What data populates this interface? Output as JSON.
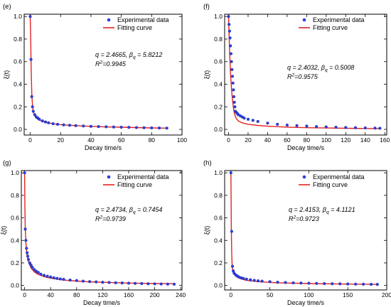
{
  "chart_data": [
    {
      "panel": "(e)",
      "type": "scatter",
      "xlabel": "Decay time/s",
      "ylabel": "ξ(t)",
      "xlim": [
        -4,
        100
      ],
      "ylim": [
        -0.05,
        1.02
      ],
      "xticks": [
        0,
        20,
        40,
        60,
        80,
        100
      ],
      "yticks": [
        0.0,
        0.2,
        0.4,
        0.6,
        0.8,
        1.0
      ],
      "legend": {
        "position": "top-right",
        "entries": [
          "Experimental data",
          "Fitting curve"
        ]
      },
      "annotation": {
        "q": "q = 2.4665, ",
        "beta": "β",
        "beta_sub": "q",
        "beta_val": " = 5.8212",
        "r2_prefix": "R",
        "r2_sup": "2",
        "r2_val": "=0.9945"
      },
      "series": [
        {
          "name": "Experimental data",
          "kind": "points",
          "x": [
            0,
            0.5,
            1,
            1.5,
            2,
            3,
            4,
            5,
            6,
            8,
            10,
            12,
            15,
            18,
            22,
            26,
            30,
            35,
            40,
            45,
            50,
            55,
            60,
            65,
            70,
            75,
            80,
            85,
            90
          ],
          "y": [
            1.0,
            0.62,
            0.29,
            0.2,
            0.16,
            0.13,
            0.11,
            0.1,
            0.09,
            0.075,
            0.066,
            0.058,
            0.05,
            0.045,
            0.04,
            0.036,
            0.033,
            0.03,
            0.027,
            0.025,
            0.023,
            0.021,
            0.019,
            0.018,
            0.016,
            0.015,
            0.013,
            0.012,
            0.011
          ]
        },
        {
          "name": "Fitting curve",
          "kind": "curve",
          "x": [
            0,
            0.3,
            0.6,
            1,
            1.5,
            2,
            3,
            4,
            6,
            8,
            10,
            15,
            20,
            30,
            40,
            50,
            60,
            70,
            80,
            90
          ],
          "y": [
            1.0,
            0.8,
            0.55,
            0.32,
            0.21,
            0.16,
            0.12,
            0.1,
            0.085,
            0.072,
            0.063,
            0.05,
            0.042,
            0.033,
            0.027,
            0.022,
            0.019,
            0.016,
            0.013,
            0.011
          ]
        }
      ]
    },
    {
      "panel": "(f)",
      "type": "scatter",
      "xlabel": "Decay time/s",
      "ylabel": "ξ(t)",
      "xlim": [
        -4,
        162
      ],
      "ylim": [
        -0.05,
        1.02
      ],
      "xticks": [
        0,
        20,
        40,
        60,
        80,
        100,
        120,
        140,
        160
      ],
      "yticks": [
        0.0,
        0.2,
        0.4,
        0.6,
        0.8,
        1.0
      ],
      "legend": {
        "position": "top-right",
        "entries": [
          "Experimental data",
          "Fitting curve"
        ]
      },
      "annotation": {
        "q": "q = 2.4032, ",
        "beta": "β",
        "beta_sub": "q",
        "beta_val": " = 0.5008",
        "r2_prefix": "R",
        "r2_sup": "2",
        "r2_val": "=0.9575"
      },
      "series": [
        {
          "name": "Experimental data",
          "kind": "points",
          "x": [
            0,
            0.5,
            1,
            1.5,
            2,
            2.5,
            3,
            3.5,
            4,
            4.5,
            5,
            5.5,
            6,
            6.5,
            7,
            8,
            9,
            10,
            12,
            14,
            16,
            20,
            25,
            30,
            40,
            50,
            60,
            70,
            80,
            90,
            100,
            110,
            120,
            130,
            140,
            150,
            155
          ],
          "y": [
            1.0,
            0.93,
            0.87,
            0.81,
            0.74,
            0.67,
            0.6,
            0.53,
            0.47,
            0.41,
            0.35,
            0.29,
            0.24,
            0.2,
            0.16,
            0.15,
            0.14,
            0.13,
            0.12,
            0.11,
            0.1,
            0.09,
            0.08,
            0.07,
            0.055,
            0.045,
            0.038,
            0.033,
            0.029,
            0.025,
            0.022,
            0.019,
            0.017,
            0.015,
            0.013,
            0.011,
            0.01
          ]
        },
        {
          "name": "Fitting curve",
          "kind": "curve",
          "x": [
            0,
            0.5,
            1,
            2,
            3,
            4,
            5,
            6,
            8,
            10,
            12,
            15,
            20,
            30,
            40,
            60,
            80,
            100,
            120,
            140,
            155
          ],
          "y": [
            1.0,
            0.85,
            0.7,
            0.5,
            0.36,
            0.26,
            0.19,
            0.14,
            0.095,
            0.075,
            0.065,
            0.055,
            0.045,
            0.035,
            0.028,
            0.02,
            0.015,
            0.012,
            0.01,
            0.008,
            0.007
          ]
        }
      ]
    },
    {
      "panel": "(g)",
      "type": "scatter",
      "xlabel": "Decay time/s",
      "ylabel": "ξ(t)",
      "xlim": [
        -5,
        242
      ],
      "ylim": [
        -0.04,
        1.02
      ],
      "xticks": [
        0,
        40,
        80,
        120,
        160,
        200,
        240
      ],
      "yticks": [
        0.0,
        0.2,
        0.4,
        0.6,
        0.8,
        1.0
      ],
      "legend": {
        "position": "top-right",
        "entries": [
          "Experimental data",
          "Fitting curve"
        ]
      },
      "annotation": {
        "q": "q = 2.4734, ",
        "beta": "β",
        "beta_sub": "q",
        "beta_val": " = 0.7454",
        "r2_prefix": "R",
        "r2_sup": "2",
        "r2_val": "=0.9739"
      },
      "series": [
        {
          "name": "Experimental data",
          "kind": "points",
          "x": [
            0,
            1,
            2,
            3,
            4,
            5,
            6,
            8,
            10,
            12,
            15,
            18,
            21,
            25,
            30,
            35,
            40,
            45,
            50,
            55,
            60,
            70,
            80,
            90,
            100,
            110,
            120,
            130,
            140,
            150,
            160,
            170,
            180,
            190,
            200,
            210,
            220,
            230
          ],
          "y": [
            1.0,
            0.5,
            0.4,
            0.33,
            0.29,
            0.26,
            0.23,
            0.2,
            0.18,
            0.16,
            0.14,
            0.125,
            0.115,
            0.1,
            0.09,
            0.082,
            0.075,
            0.068,
            0.062,
            0.058,
            0.054,
            0.048,
            0.043,
            0.038,
            0.034,
            0.031,
            0.028,
            0.026,
            0.024,
            0.022,
            0.02,
            0.018,
            0.017,
            0.015,
            0.014,
            0.013,
            0.012,
            0.011
          ]
        },
        {
          "name": "Fitting curve",
          "kind": "curve",
          "x": [
            0,
            0.5,
            1,
            2,
            3,
            4,
            6,
            8,
            10,
            15,
            20,
            30,
            40,
            60,
            80,
            100,
            120,
            160,
            200,
            230
          ],
          "y": [
            1.0,
            0.7,
            0.52,
            0.38,
            0.31,
            0.26,
            0.21,
            0.18,
            0.155,
            0.12,
            0.1,
            0.078,
            0.065,
            0.048,
            0.039,
            0.032,
            0.028,
            0.021,
            0.017,
            0.015
          ]
        }
      ]
    },
    {
      "panel": "(h)",
      "type": "scatter",
      "xlabel": "Decay time/s",
      "ylabel": "ξ(t)",
      "xlim": [
        -8,
        200
      ],
      "ylim": [
        -0.04,
        1.02
      ],
      "xticks": [
        0,
        50,
        100,
        150,
        200
      ],
      "yticks": [
        0.0,
        0.2,
        0.4,
        0.6,
        0.8,
        1.0
      ],
      "legend": {
        "position": "top-right",
        "entries": [
          "Experimental data",
          "Fitting curve"
        ]
      },
      "annotation": {
        "q": "q = 2.4153, ",
        "beta": "β",
        "beta_sub": "q",
        "beta_val": " = 4.1121",
        "r2_prefix": "R",
        "r2_sup": "2",
        "r2_val": "=0.9723"
      },
      "series": [
        {
          "name": "Experimental data",
          "kind": "points",
          "x": [
            0,
            1,
            2,
            3,
            4,
            6,
            8,
            10,
            13,
            16,
            20,
            25,
            30,
            35,
            40,
            50,
            60,
            70,
            80,
            90,
            100,
            110,
            120,
            130,
            140,
            150,
            160,
            170,
            180,
            188
          ],
          "y": [
            1.0,
            0.48,
            0.17,
            0.13,
            0.11,
            0.095,
            0.085,
            0.077,
            0.068,
            0.062,
            0.056,
            0.05,
            0.045,
            0.041,
            0.038,
            0.033,
            0.029,
            0.026,
            0.023,
            0.021,
            0.019,
            0.018,
            0.016,
            0.015,
            0.014,
            0.013,
            0.012,
            0.011,
            0.01,
            0.009
          ]
        },
        {
          "name": "Fitting curve",
          "kind": "curve",
          "x": [
            0,
            0.3,
            0.6,
            1,
            1.5,
            2,
            3,
            4,
            6,
            8,
            10,
            15,
            20,
            30,
            40,
            60,
            80,
            100,
            130,
            160,
            188
          ],
          "y": [
            1.0,
            0.75,
            0.5,
            0.3,
            0.2,
            0.15,
            0.12,
            0.1,
            0.085,
            0.075,
            0.066,
            0.054,
            0.046,
            0.037,
            0.031,
            0.024,
            0.02,
            0.017,
            0.014,
            0.011,
            0.009
          ]
        }
      ]
    }
  ]
}
